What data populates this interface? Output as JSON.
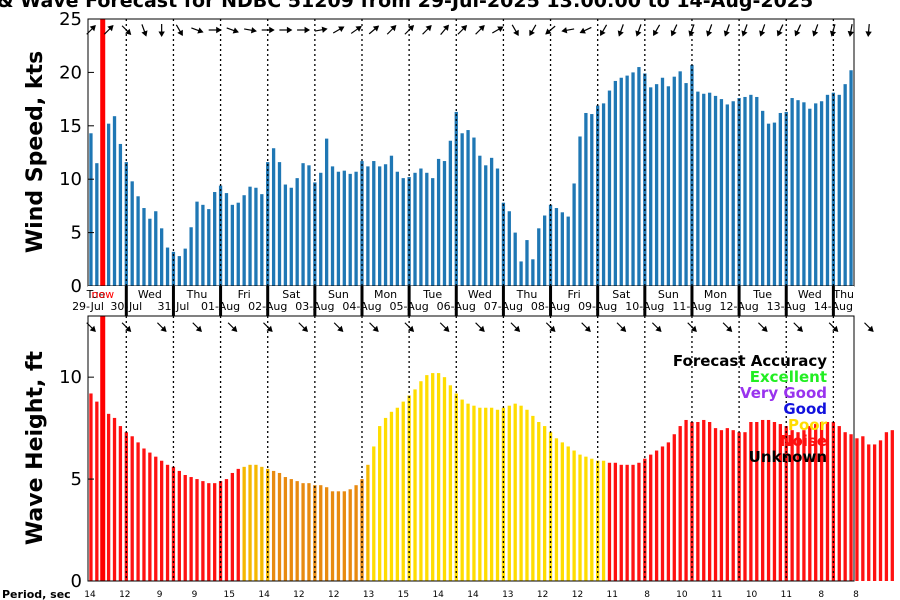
{
  "title": "& Wave Forecast for NDBC 51209 from 29-Jul-2025 13:00:00 to 14-Aug-2025",
  "chart_data": [
    {
      "type": "bar",
      "ylabel": "Wind Speed, kts",
      "ylim": [
        0,
        25
      ],
      "yticks": [
        0,
        5,
        10,
        15,
        20,
        25
      ],
      "color": "#1f77b4",
      "values": [
        14.3,
        11.5,
        0,
        15.2,
        15.9,
        13.3,
        11.6,
        9.8,
        8.4,
        7.3,
        6.3,
        7.0,
        5.4,
        3.6,
        3.2,
        2.8,
        3.5,
        5.5,
        7.9,
        7.6,
        7.2,
        8.8,
        9.4,
        8.7,
        7.6,
        7.8,
        8.5,
        9.3,
        9.2,
        8.6,
        11.6,
        12.9,
        11.6,
        9.5,
        9.2,
        10.1,
        11.5,
        11.3,
        9.7,
        10.6,
        13.8,
        11.2,
        10.7,
        10.8,
        10.5,
        10.7,
        11.7,
        11.2,
        11.7,
        11.2,
        11.4,
        12.2,
        10.7,
        10.1,
        10.2,
        10.6,
        11.0,
        10.6,
        10.1,
        11.9,
        11.7,
        13.6,
        16.3,
        14.3,
        14.6,
        13.9,
        12.2,
        11.3,
        12.0,
        11.0,
        7.8,
        7.0,
        5.0,
        2.3,
        4.3,
        2.5,
        5.4,
        6.6,
        7.6,
        7.3,
        6.9,
        6.5,
        9.6,
        14.0,
        16.2,
        16.1,
        16.9,
        17.1,
        18.3,
        19.2,
        19.5,
        19.7,
        20.0,
        20.5,
        19.9,
        18.6,
        18.9,
        19.5,
        18.7,
        19.6,
        20.1,
        19.0,
        20.7,
        18.2,
        18.0,
        18.1,
        17.8,
        17.5,
        17.0,
        17.3,
        17.6,
        17.7,
        17.9,
        17.7,
        16.4,
        15.2,
        15.3,
        16.2,
        16.3,
        17.6,
        17.4,
        17.2,
        16.6,
        17.1,
        17.3,
        17.9,
        18.1,
        17.9,
        18.9,
        20.2
      ],
      "day_labels": [
        {
          "day": "Tue",
          "date": "29-Jul",
          "i": 0
        },
        {
          "day": "Wed",
          "date": "30-Jul",
          "i": 6
        },
        {
          "day": "Thu",
          "date": "31-Jul",
          "i": 14
        },
        {
          "day": "Fri",
          "date": "01-Aug",
          "i": 22
        },
        {
          "day": "Sat",
          "date": "02-Aug",
          "i": 30
        },
        {
          "day": "Sun",
          "date": "03-Aug",
          "i": 38
        },
        {
          "day": "Mon",
          "date": "04-Aug",
          "i": 46
        },
        {
          "day": "Tue",
          "date": "05-Aug",
          "i": 54
        },
        {
          "day": "Wed",
          "date": "06-Aug",
          "i": 62
        },
        {
          "day": "Thu",
          "date": "07-Aug",
          "i": 70
        },
        {
          "day": "Fri",
          "date": "08-Aug",
          "i": 78
        },
        {
          "day": "Sat",
          "date": "09-Aug",
          "i": 86
        },
        {
          "day": "Sun",
          "date": "10-Aug",
          "i": 94
        },
        {
          "day": "Mon",
          "date": "11-Aug",
          "i": 102
        },
        {
          "day": "Tue",
          "date": "12-Aug",
          "i": 110
        },
        {
          "day": "Wed",
          "date": "13-Aug",
          "i": 118
        },
        {
          "day": "Thu",
          "date": "14-Aug",
          "i": 126
        }
      ],
      "now_marker": "now",
      "wind_arrow_dirs": [
        45,
        45,
        45,
        45,
        45,
        90,
        135,
        135,
        150,
        160,
        170,
        180,
        180,
        175,
        160,
        150,
        140,
        135,
        110,
        100,
        90,
        90,
        90,
        100,
        110,
        120,
        110,
        100,
        100,
        90,
        90,
        90,
        90,
        90,
        90,
        90,
        90,
        80,
        80,
        80,
        80,
        70,
        60,
        55,
        55,
        55,
        50,
        50,
        50,
        45,
        45,
        45,
        45,
        45,
        45,
        45,
        45,
        45,
        45,
        40,
        40,
        40,
        45,
        45,
        45,
        45,
        45,
        50,
        50,
        60,
        80,
        120,
        150,
        170,
        190,
        210,
        220,
        225,
        230,
        240,
        250,
        260,
        270,
        260,
        245,
        230,
        220,
        210,
        205,
        200,
        200,
        200,
        200,
        200,
        200,
        200,
        210,
        210,
        210,
        205,
        205,
        200,
        200,
        200,
        200,
        200,
        200,
        200,
        200,
        200,
        200,
        200,
        200,
        200,
        200,
        200,
        200,
        205,
        210,
        210,
        205,
        200,
        200,
        200,
        200,
        200,
        195,
        190,
        190,
        190,
        185,
        185,
        185,
        185,
        185
      ]
    },
    {
      "type": "bar",
      "ylabel": "Wave Height, ft",
      "ylim": [
        0,
        13
      ],
      "yticks": [
        0,
        5,
        10
      ],
      "values": [
        9.2,
        8.8,
        0,
        8.2,
        8.0,
        7.6,
        7.3,
        7.1,
        6.8,
        6.5,
        6.3,
        6.1,
        5.9,
        5.7,
        5.6,
        5.4,
        5.2,
        5.1,
        5.0,
        4.9,
        4.8,
        4.8,
        4.9,
        5.0,
        5.3,
        5.5,
        5.6,
        5.7,
        5.7,
        5.6,
        5.5,
        5.4,
        5.3,
        5.1,
        5.0,
        4.9,
        4.8,
        4.8,
        4.7,
        4.7,
        4.6,
        4.4,
        4.4,
        4.4,
        4.5,
        4.7,
        5.0,
        5.7,
        6.6,
        7.6,
        8.0,
        8.3,
        8.5,
        8.8,
        9.1,
        9.4,
        9.8,
        10.1,
        10.2,
        10.2,
        10.0,
        9.6,
        9.2,
        8.9,
        8.7,
        8.6,
        8.5,
        8.5,
        8.5,
        8.4,
        8.5,
        8.6,
        8.7,
        8.6,
        8.4,
        8.1,
        7.8,
        7.6,
        7.3,
        7.0,
        6.8,
        6.6,
        6.4,
        6.2,
        6.1,
        6.0,
        5.9,
        5.9,
        5.8,
        5.8,
        5.7,
        5.7,
        5.7,
        5.8,
        6.0,
        6.2,
        6.4,
        6.6,
        6.8,
        7.2,
        7.6,
        7.9,
        7.8,
        7.8,
        7.9,
        7.8,
        7.5,
        7.4,
        7.5,
        7.4,
        7.3,
        7.3,
        7.8,
        7.8,
        7.9,
        7.9,
        7.8,
        7.7,
        7.6,
        7.4,
        7.3,
        7.4,
        7.6,
        7.7,
        7.8,
        7.8,
        7.8,
        7.6,
        7.3,
        7.2,
        7.0,
        7.1,
        6.7,
        6.7,
        6.9,
        7.3,
        7.4
      ],
      "accuracy": [
        "Noise",
        "Noise",
        "Noise",
        "Noise",
        "Noise",
        "Noise",
        "Noise",
        "Noise",
        "Noise",
        "Noise",
        "Noise",
        "Noise",
        "Noise",
        "Noise",
        "Noise",
        "Noise",
        "Noise",
        "Noise",
        "Noise",
        "Noise",
        "Noise",
        "Noise",
        "Noise",
        "Noise",
        "Noise",
        "Noise",
        "Poor",
        "Poor",
        "Poor",
        "Poor",
        "Poor",
        "Poor",
        "Poor",
        "Poor",
        "Poor",
        "Poor",
        "Poor",
        "Poor",
        "Poor",
        "Poor",
        "Poor",
        "Poor",
        "Poor",
        "Poor",
        "Poor",
        "Poor",
        "Poor",
        "Poor",
        "Poor",
        "Poor",
        "Poor",
        "Poor",
        "Poor",
        "Poor",
        "Poor",
        "Poor",
        "Poor",
        "Poor",
        "Poor",
        "Poor",
        "Poor",
        "Poor",
        "Poor",
        "Poor",
        "Poor",
        "Poor",
        "Poor",
        "Poor",
        "Poor",
        "Poor",
        "Poor",
        "Poor",
        "Poor",
        "Poor",
        "Poor",
        "Poor",
        "Poor",
        "Poor",
        "Poor",
        "Poor",
        "Poor",
        "Poor",
        "Poor",
        "Poor",
        "Poor",
        "Poor",
        "Poor",
        "Poor",
        "Noise",
        "Noise",
        "Noise",
        "Noise",
        "Noise",
        "Noise",
        "Noise",
        "Noise",
        "Noise",
        "Noise",
        "Noise",
        "Noise",
        "Noise",
        "Noise",
        "Noise",
        "Noise",
        "Noise",
        "Noise",
        "Noise",
        "Noise",
        "Noise",
        "Noise",
        "Noise",
        "Noise",
        "Noise",
        "Noise",
        "Noise",
        "Noise",
        "Noise",
        "Noise",
        "Noise",
        "Noise",
        "Noise",
        "Noise",
        "Noise",
        "Noise",
        "Noise",
        "Noise",
        "Noise",
        "Noise",
        "Noise",
        "Noise",
        "Noise",
        "Noise",
        "Noise",
        "Noise",
        "Noise",
        "Noise",
        "Noise"
      ],
      "legend": {
        "title": "Forecast Accuracy",
        "entries": [
          {
            "label": "Excellent",
            "color": "#22ee22"
          },
          {
            "label": "Very Good",
            "color": "#9933ee"
          },
          {
            "label": "Good",
            "color": "#1111dd"
          },
          {
            "label": "Poor",
            "color": "#ffdd00"
          },
          {
            "label": "Noise",
            "color": "#ff1111"
          },
          {
            "label": "Unknown",
            "color": "#000000"
          }
        ]
      },
      "wave_arrow_dirs": [
        135,
        135,
        135,
        135,
        135,
        135,
        135,
        135,
        135,
        135,
        135,
        135,
        135,
        135,
        135,
        135,
        135,
        135,
        135,
        135,
        135,
        135,
        135,
        135,
        135,
        135,
        135,
        135,
        135,
        135,
        135,
        135,
        135,
        135,
        135,
        135,
        135,
        135,
        135,
        135,
        135,
        135,
        135,
        135,
        135,
        135,
        135,
        135,
        135,
        135,
        135,
        135,
        135,
        135,
        135,
        135,
        135,
        135,
        135,
        135,
        135,
        135,
        135,
        135,
        135,
        135,
        135,
        135,
        135,
        135,
        135,
        135,
        135,
        135,
        135,
        135,
        135,
        135,
        135,
        135,
        135,
        135,
        135,
        135,
        135,
        135,
        135,
        135,
        135,
        135,
        135,
        135,
        135,
        135,
        135,
        135,
        135,
        135,
        135,
        135,
        135,
        135,
        135,
        135,
        135,
        135,
        135,
        135,
        135,
        135,
        135,
        135,
        135,
        135,
        135,
        135,
        135,
        135,
        135,
        135,
        135,
        135,
        135,
        135,
        135,
        135,
        135,
        135,
        135,
        135,
        135,
        135,
        135,
        135,
        135
      ]
    }
  ],
  "period_label": "Period, sec",
  "periods": [
    "14",
    "12",
    "9",
    "9",
    "15",
    "14",
    "12",
    "12",
    "13",
    "15",
    "14",
    "14",
    "13",
    "12",
    "12",
    "11",
    "8",
    "10",
    "11",
    "10",
    "11",
    "8",
    "8"
  ]
}
